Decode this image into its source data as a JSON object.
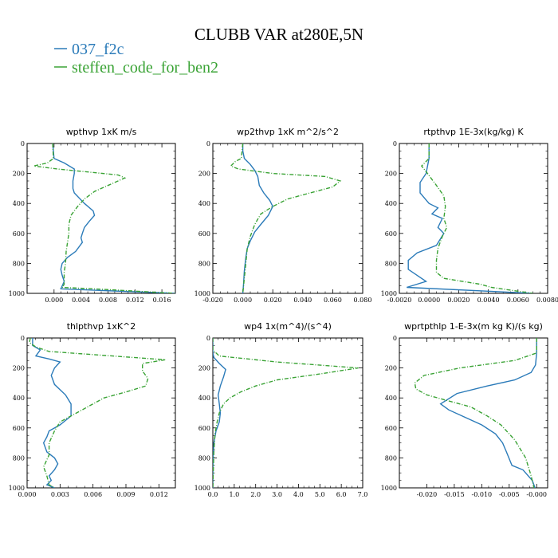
{
  "figure": {
    "title": "CLUBB VAR at280E,5N",
    "legend": [
      {
        "label": "037_f2c",
        "color": "#2b7bb9",
        "dash": "solid"
      },
      {
        "label": "steffen_code_for_ben2",
        "color": "#3aa335",
        "dash": "dash-dot"
      }
    ]
  },
  "chart_data": [
    {
      "type": "line",
      "title": "wpthvp   1xK m/s",
      "xlim": [
        -0.004,
        0.018
      ],
      "xticks": [
        0.0,
        0.004,
        0.008,
        0.012,
        0.016
      ],
      "xtick_labels": [
        "0.000",
        "0.004",
        "0.008",
        "0.012",
        "0.016"
      ],
      "ylim": [
        1000,
        0
      ],
      "yticks": [
        0,
        200,
        400,
        600,
        800,
        1000
      ],
      "ytick_labels": [
        "0",
        "200",
        "400",
        "600",
        "800",
        "1000"
      ],
      "series": [
        {
          "name": "037_f2c",
          "x": [
            -0.0002,
            -0.0001,
            0.0,
            0.0015,
            0.003,
            0.003,
            0.0028,
            0.0028,
            0.003,
            0.0045,
            0.0058,
            0.006,
            0.0052,
            0.0045,
            0.0042,
            0.004,
            0.0042,
            0.0032,
            0.002,
            0.0012,
            0.001,
            0.0012,
            0.0015,
            0.0012,
            0.001,
            0.018
          ],
          "y": [
            0,
            50,
            100,
            130,
            170,
            200,
            250,
            300,
            330,
            400,
            450,
            480,
            520,
            560,
            600,
            630,
            660,
            720,
            760,
            800,
            840,
            880,
            920,
            950,
            970,
            1000
          ]
        },
        {
          "name": "steffen_code_for_ben2",
          "x": [
            -0.0002,
            -0.0001,
            -0.001,
            -0.003,
            0.0005,
            0.005,
            0.0095,
            0.0105,
            0.009,
            0.0075,
            0.006,
            0.0045,
            0.0035,
            0.0025,
            0.0022,
            0.0022,
            0.002,
            0.0018,
            0.0017,
            0.0015,
            0.0015,
            0.0015,
            0.0012,
            0.008,
            0.018
          ],
          "y": [
            0,
            100,
            130,
            150,
            170,
            190,
            210,
            230,
            260,
            290,
            320,
            370,
            420,
            480,
            540,
            600,
            660,
            720,
            800,
            860,
            900,
            940,
            960,
            975,
            1000
          ]
        }
      ]
    },
    {
      "type": "line",
      "title": "wp2thvp   1xK m^2/s^2",
      "xlim": [
        -0.02,
        0.08
      ],
      "xticks": [
        -0.02,
        0.0,
        0.02,
        0.04,
        0.06,
        0.08
      ],
      "xtick_labels": [
        "-0.020",
        "0.000",
        "0.020",
        "0.040",
        "0.060",
        "0.080"
      ],
      "ylim": [
        1000,
        0
      ],
      "yticks": [
        0,
        200,
        400,
        600,
        800,
        1000
      ],
      "ytick_labels": [
        "0",
        "200",
        "400",
        "600",
        "800",
        "1000"
      ],
      "series": [
        {
          "name": "037_f2c",
          "x": [
            0.0,
            0.0,
            0.001,
            0.005,
            0.008,
            0.01,
            0.011,
            0.014,
            0.018,
            0.02,
            0.017,
            0.012,
            0.008,
            0.005,
            0.003,
            0.002,
            0.001,
            0.0005,
            0.0
          ],
          "y": [
            0,
            50,
            100,
            140,
            180,
            220,
            280,
            330,
            380,
            420,
            480,
            540,
            590,
            650,
            700,
            760,
            850,
            940,
            1000
          ]
        },
        {
          "name": "steffen_code_for_ben2",
          "x": [
            0.0,
            -0.001,
            -0.005,
            -0.008,
            -0.003,
            0.02,
            0.055,
            0.065,
            0.06,
            0.045,
            0.03,
            0.02,
            0.012,
            0.008,
            0.005,
            0.003,
            0.002,
            0.001,
            0.0
          ],
          "y": [
            0,
            100,
            120,
            150,
            170,
            200,
            220,
            250,
            290,
            330,
            370,
            420,
            470,
            540,
            620,
            700,
            800,
            900,
            1000
          ]
        }
      ]
    },
    {
      "type": "line",
      "title": "rtpthvp   1E-3x(kg/kg) K",
      "xlim": [
        -0.002,
        0.008
      ],
      "xticks": [
        -0.002,
        0.0,
        0.002,
        0.004,
        0.006,
        0.008
      ],
      "xtick_labels": [
        "-0.0020",
        "0.0000",
        "0.0020",
        "0.0040",
        "0.0060",
        "0.0080"
      ],
      "ylim": [
        1000,
        0
      ],
      "yticks": [
        0,
        200,
        400,
        600,
        800,
        1000
      ],
      "ytick_labels": [
        "0",
        "200",
        "400",
        "600",
        "800",
        "1000"
      ],
      "series": [
        {
          "name": "037_f2c",
          "x": [
            0.0,
            0.0,
            -0.0002,
            -0.0006,
            -0.0006,
            0.0,
            0.0006,
            0.0002,
            0.0009,
            0.0006,
            0.001,
            0.0005,
            -0.0008,
            -0.0014,
            -0.0014,
            -0.0008,
            -0.0002,
            -0.0015,
            0.007
          ],
          "y": [
            0,
            100,
            200,
            260,
            330,
            400,
            430,
            470,
            500,
            560,
            600,
            680,
            730,
            780,
            840,
            880,
            920,
            960,
            1000
          ]
        },
        {
          "name": "steffen_code_for_ben2",
          "x": [
            0.0,
            0.0,
            -0.0005,
            -0.0001,
            0.0005,
            0.001,
            0.0011,
            0.001,
            0.0012,
            0.0009,
            0.0006,
            0.0005,
            0.0005,
            0.001,
            0.0035,
            0.0042,
            0.007
          ],
          "y": [
            0,
            100,
            150,
            200,
            280,
            350,
            420,
            500,
            560,
            620,
            700,
            780,
            860,
            900,
            940,
            960,
            1000
          ]
        }
      ]
    },
    {
      "type": "line",
      "title": "thlpthvp   1xK^2",
      "xlim": [
        0.0,
        0.0135
      ],
      "xticks": [
        0.0,
        0.003,
        0.006,
        0.009,
        0.012
      ],
      "xtick_labels": [
        "0.000",
        "0.003",
        "0.006",
        "0.009",
        "0.012"
      ],
      "ylim": [
        1000,
        0
      ],
      "yticks": [
        0,
        200,
        400,
        600,
        800,
        1000
      ],
      "ytick_labels": [
        "0",
        "200",
        "400",
        "600",
        "800",
        "1000"
      ],
      "series": [
        {
          "name": "037_f2c",
          "x": [
            0.0005,
            0.0005,
            0.0012,
            0.0008,
            0.002,
            0.003,
            0.0025,
            0.0022,
            0.0025,
            0.0035,
            0.004,
            0.004,
            0.003,
            0.002,
            0.0018,
            0.0015,
            0.0018,
            0.0025,
            0.0028,
            0.0025,
            0.002,
            0.0022,
            0.0018,
            0.0025
          ],
          "y": [
            0,
            50,
            80,
            120,
            140,
            160,
            200,
            250,
            310,
            380,
            440,
            520,
            580,
            620,
            660,
            700,
            760,
            800,
            840,
            880,
            920,
            950,
            980,
            1000
          ]
        },
        {
          "name": "steffen_code_for_ben2",
          "x": [
            0.0003,
            0.0002,
            0.0008,
            0.002,
            0.0126,
            0.0105,
            0.0105,
            0.011,
            0.0108,
            0.009,
            0.007,
            0.0055,
            0.004,
            0.003,
            0.0025,
            0.002,
            0.002,
            0.0015,
            0.0018,
            0.002,
            0.0025
          ],
          "y": [
            0,
            30,
            60,
            90,
            145,
            170,
            220,
            270,
            320,
            360,
            400,
            460,
            520,
            560,
            620,
            700,
            780,
            860,
            920,
            980,
            1000
          ]
        }
      ]
    },
    {
      "type": "line",
      "title": "wp4   1x(m^4)/(s^4)",
      "xlim": [
        0.0,
        7.0
      ],
      "xticks": [
        0.0,
        1.0,
        2.0,
        3.0,
        4.0,
        5.0,
        6.0,
        7.0
      ],
      "xtick_labels": [
        "0.0",
        "1.0",
        "2.0",
        "3.0",
        "4.0",
        "5.0",
        "6.0",
        "7.0"
      ],
      "ylim": [
        1000,
        0
      ],
      "yticks": [
        0,
        200,
        400,
        600,
        800,
        1000
      ],
      "ytick_labels": [
        "0",
        "200",
        "400",
        "600",
        "800",
        "1000"
      ],
      "series": [
        {
          "name": "037_f2c",
          "x": [
            0.0,
            0.0,
            0.05,
            0.3,
            0.6,
            0.5,
            0.35,
            0.25,
            0.3,
            0.35,
            0.3,
            0.15,
            0.05,
            0.01,
            0.0
          ],
          "y": [
            0,
            100,
            130,
            170,
            210,
            260,
            320,
            380,
            440,
            500,
            560,
            620,
            700,
            800,
            1000
          ]
        },
        {
          "name": "steffen_code_for_ben2",
          "x": [
            0.0,
            0.0,
            0.3,
            3.0,
            6.8,
            5.0,
            3.0,
            2.0,
            1.3,
            0.8,
            0.5,
            0.3,
            0.2,
            0.1,
            0.05,
            0.0
          ],
          "y": [
            0,
            80,
            120,
            160,
            200,
            240,
            280,
            320,
            360,
            400,
            440,
            500,
            560,
            640,
            760,
            1000
          ]
        }
      ]
    },
    {
      "type": "line",
      "title": "wprtpthlp   1-E-3x(m kg K)/(s kg)",
      "xlim": [
        -0.025,
        0.002
      ],
      "xticks": [
        -0.02,
        -0.015,
        -0.01,
        -0.005,
        0.0
      ],
      "xtick_labels": [
        "-0.020",
        "-0.015",
        "-0.010",
        "-0.005",
        "-0.000"
      ],
      "ylim": [
        1000,
        0
      ],
      "yticks": [
        0,
        200,
        400,
        600,
        800,
        1000
      ],
      "ytick_labels": [
        "0",
        "200",
        "400",
        "600",
        "800",
        "1000"
      ],
      "series": [
        {
          "name": "037_f2c",
          "x": [
            0.0,
            0.0,
            -0.0002,
            -0.001,
            -0.004,
            -0.009,
            -0.0145,
            -0.0175,
            -0.016,
            -0.013,
            -0.01,
            -0.0075,
            -0.0062,
            -0.0055,
            -0.0045,
            -0.0025,
            -0.0008,
            -0.0003
          ],
          "y": [
            0,
            100,
            180,
            230,
            280,
            320,
            370,
            440,
            480,
            530,
            580,
            640,
            700,
            760,
            850,
            880,
            950,
            1000
          ]
        },
        {
          "name": "steffen_code_for_ben2",
          "x": [
            0.0,
            0.0,
            -0.004,
            -0.014,
            -0.0205,
            -0.0222,
            -0.022,
            -0.02,
            -0.016,
            -0.012,
            -0.009,
            -0.0065,
            -0.004,
            -0.002,
            -0.001,
            -0.0005
          ],
          "y": [
            0,
            100,
            150,
            200,
            250,
            300,
            340,
            380,
            420,
            460,
            520,
            580,
            680,
            800,
            920,
            1000
          ]
        }
      ]
    }
  ]
}
